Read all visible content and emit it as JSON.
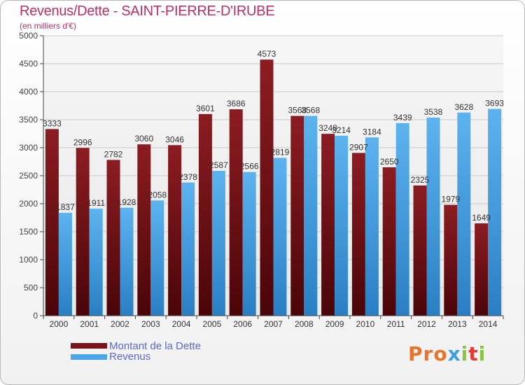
{
  "title": "Revenus/Dette - SAINT-PIERRE-D'IRUBE",
  "subtitle": "(en milliers d'€)",
  "legend": [
    {
      "label": "Montant de la Dette",
      "color": "#7a1418"
    },
    {
      "label": "Revenus",
      "color": "#4aa6e6"
    }
  ],
  "logo": {
    "text": "Proxiti",
    "colors": [
      "#e8742c",
      "#e8742c",
      "#e8742c",
      "#3b9fe0",
      "#8bc53f",
      "#e53935",
      "#8bc53f"
    ]
  },
  "chart_data": {
    "type": "bar",
    "title": "Revenus/Dette - SAINT-PIERRE-D'IRUBE",
    "subtitle": "(en milliers d'€)",
    "categories": [
      "2000",
      "2001",
      "2002",
      "2003",
      "2004",
      "2005",
      "2006",
      "2007",
      "2008",
      "2009",
      "2010",
      "2011",
      "2012",
      "2013",
      "2014"
    ],
    "series": [
      {
        "name": "Montant de la Dette",
        "color": "#7a1418",
        "values": [
          3333,
          2996,
          2782,
          3060,
          3046,
          3601,
          3686,
          4573,
          3568,
          3248,
          2907,
          2650,
          2325,
          1979,
          1649
        ],
        "labels": [
          "3333",
          "2996",
          "2782",
          "3060",
          "3046",
          "3601",
          "3686",
          "4573",
          "3568",
          "3248",
          "2907",
          "2650",
          "2325",
          "1979",
          "1649"
        ]
      },
      {
        "name": "Revenus",
        "color": "#4aa6e6",
        "values": [
          1837,
          1911,
          1928,
          2058,
          2378,
          2587,
          2566,
          2819,
          3568,
          3214,
          3184,
          3439,
          3538,
          3628,
          3693
        ],
        "labels": [
          "1837",
          "1911",
          "1928",
          "2058",
          "2378",
          "2587",
          "2566",
          "2819",
          "3568",
          "3214",
          "3184",
          "3439",
          "3538",
          "3628",
          "3693"
        ]
      }
    ],
    "ylim": [
      0,
      5000
    ],
    "yticks": [
      0,
      500,
      1000,
      1500,
      2000,
      2500,
      3000,
      3500,
      4000,
      4500,
      5000
    ],
    "grid": true,
    "legend_position": "bottom-left"
  }
}
